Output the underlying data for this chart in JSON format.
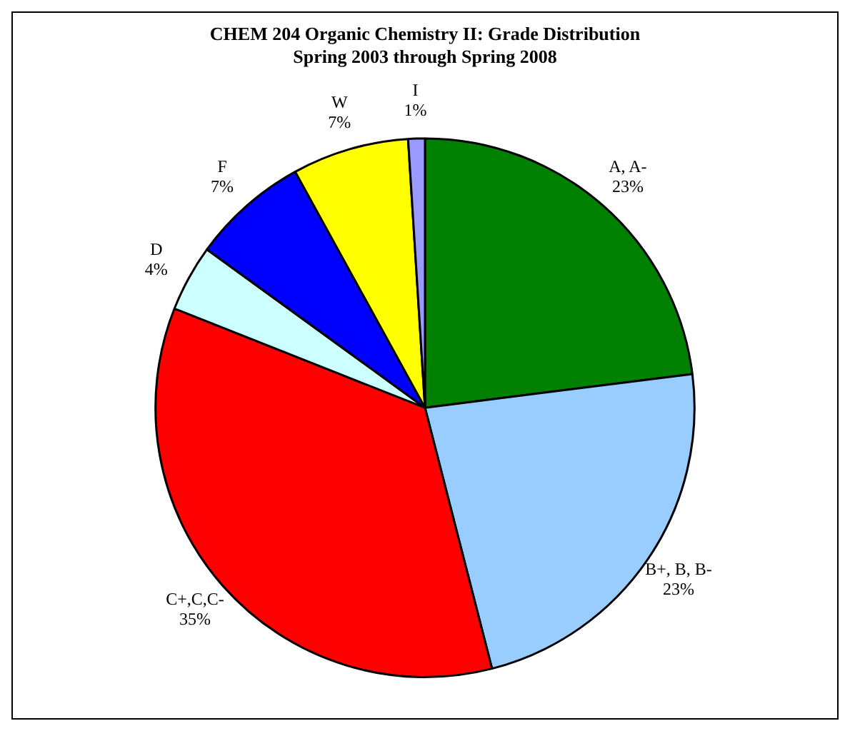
{
  "chart_data": {
    "type": "pie",
    "title": "CHEM 204 Organic Chemistry II: Grade Distribution",
    "subtitle": "Spring 2003 through Spring 2008",
    "categories": [
      "A, A-",
      "B+, B, B-",
      "C+,C,C-",
      "D",
      "F",
      "W",
      "I"
    ],
    "values": [
      23,
      23,
      35,
      4,
      7,
      7,
      1
    ],
    "value_labels": [
      "23%",
      "23%",
      "35%",
      "4%",
      "7%",
      "7%",
      "1%"
    ],
    "colors": [
      "#008000",
      "#99ccff",
      "#ff0000",
      "#ccffff",
      "#0000ff",
      "#ffff00",
      "#9999ff"
    ],
    "legend": false
  }
}
